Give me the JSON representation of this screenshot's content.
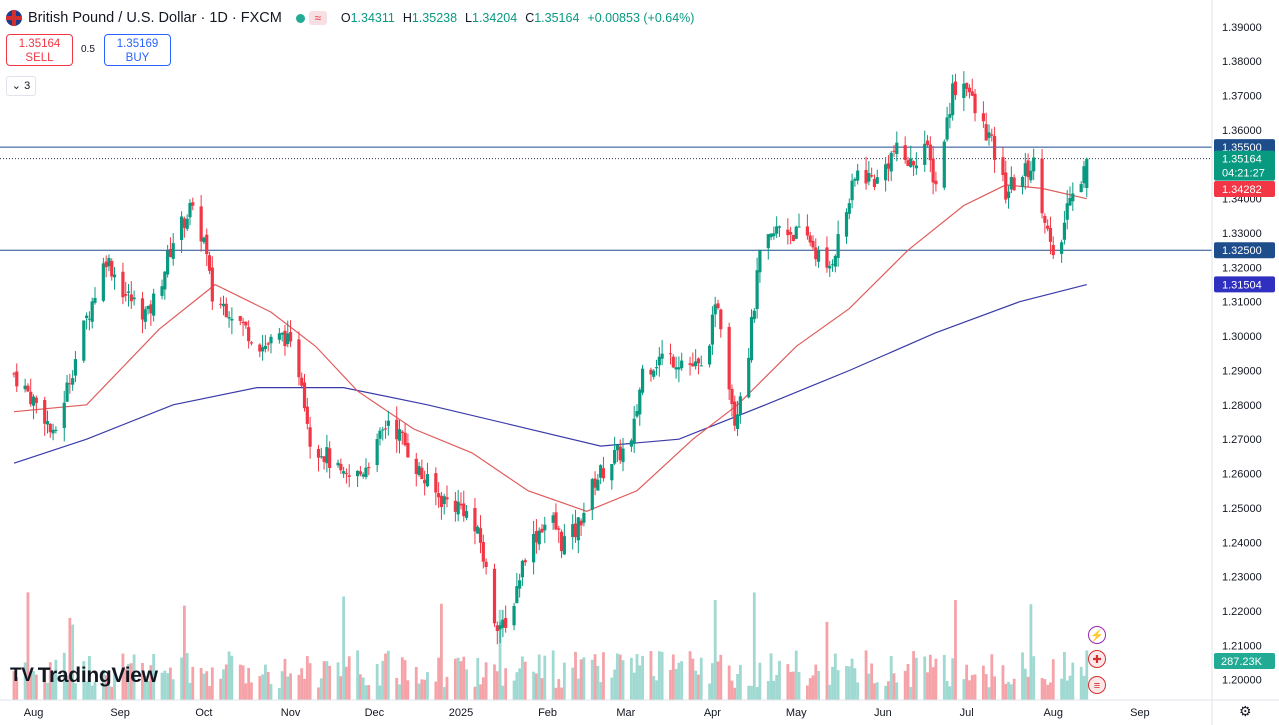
{
  "header": {
    "title": "British Pound / U.S. Dollar · 1D · FXCM",
    "ohlc": [
      {
        "k": "O",
        "v": "1.34311"
      },
      {
        "k": "H",
        "v": "1.35238"
      },
      {
        "k": "L",
        "v": "1.34204"
      },
      {
        "k": "C",
        "v": "1.35164"
      }
    ],
    "change": "+0.00853 (+0.64%)"
  },
  "trade": {
    "sell_price": "1.35164",
    "sell_label": "SELL",
    "spread": "0.5",
    "buy_price": "1.35169",
    "buy_label": "BUY"
  },
  "studies_count": "3",
  "logo_text": "TradingView",
  "events": [
    "lightning-icon",
    "uk-flag-icon",
    "us-flag-icon"
  ],
  "colors": {
    "up": "#089981",
    "down": "#f23645",
    "ma50": "#e05c5c",
    "ma200": "#3b3ba8",
    "hline": "#1e4d8c",
    "vol_up": "#9fd9d1",
    "vol_down": "#f5a3a8"
  },
  "chart_data": {
    "type": "candlestick",
    "symbol": "GBPUSD",
    "interval": "1D",
    "y_ticks": [
      "1.39000",
      "1.38000",
      "1.37000",
      "1.36000",
      "1.35000",
      "1.34000",
      "1.33000",
      "1.32000",
      "1.31000",
      "1.30000",
      "1.29000",
      "1.28000",
      "1.27000",
      "1.26000",
      "1.25000",
      "1.24000",
      "1.23000",
      "1.22000",
      "1.21000",
      "1.20000"
    ],
    "ylim": [
      1.197,
      1.392
    ],
    "x_ticks": [
      "Aug",
      "Sep",
      "Oct",
      "Nov",
      "Dec",
      "2025",
      "Feb",
      "Mar",
      "Apr",
      "May",
      "Jun",
      "Jul",
      "Aug",
      "Sep"
    ],
    "horizontal_levels": [
      {
        "value": 1.355,
        "label": "1.35500",
        "color": "#1e4d8c"
      },
      {
        "value": 1.325,
        "label": "1.32500",
        "color": "#1e4d8c"
      }
    ],
    "price_labels": [
      {
        "value": 1.35164,
        "label": "1.35164",
        "countdown": "04:21:27",
        "color": "#089981"
      },
      {
        "value": 1.34282,
        "label": "1.34282",
        "color": "#f23645"
      },
      {
        "value": 1.31504,
        "label": "1.31504",
        "color": "#3030c0"
      }
    ],
    "volume_label": "287.23K",
    "close_path": [
      [
        "2024-07-25",
        1.289
      ],
      [
        "2024-08-05",
        1.277
      ],
      [
        "2024-08-08",
        1.27
      ],
      [
        "2024-08-13",
        1.285
      ],
      [
        "2024-08-20",
        1.305
      ],
      [
        "2024-08-27",
        1.323
      ],
      [
        "2024-09-03",
        1.312
      ],
      [
        "2024-09-11",
        1.306
      ],
      [
        "2024-09-16",
        1.317
      ],
      [
        "2024-09-20",
        1.328
      ],
      [
        "2024-09-26",
        1.337
      ],
      [
        "2024-10-01",
        1.328
      ],
      [
        "2024-10-04",
        1.311
      ],
      [
        "2024-10-10",
        1.308
      ],
      [
        "2024-10-16",
        1.302
      ],
      [
        "2024-10-22",
        1.297
      ],
      [
        "2024-10-30",
        1.3
      ],
      [
        "2024-11-05",
        1.288
      ],
      [
        "2024-11-08",
        1.27
      ],
      [
        "2024-11-14",
        1.265
      ],
      [
        "2024-11-20",
        1.258
      ],
      [
        "2024-11-26",
        1.26
      ],
      [
        "2024-12-02",
        1.268
      ],
      [
        "2024-12-06",
        1.276
      ],
      [
        "2024-12-11",
        1.27
      ],
      [
        "2024-12-18",
        1.259
      ],
      [
        "2024-12-24",
        1.253
      ],
      [
        "2025-01-02",
        1.25
      ],
      [
        "2025-01-08",
        1.24
      ],
      [
        "2025-01-13",
        1.218
      ],
      [
        "2025-01-17",
        1.214
      ],
      [
        "2025-01-24",
        1.237
      ],
      [
        "2025-01-30",
        1.245
      ],
      [
        "2025-02-03",
        1.246
      ],
      [
        "2025-02-06",
        1.24
      ],
      [
        "2025-02-11",
        1.243
      ],
      [
        "2025-02-18",
        1.258
      ],
      [
        "2025-02-25",
        1.265
      ],
      [
        "2025-03-03",
        1.268
      ],
      [
        "2025-03-07",
        1.29
      ],
      [
        "2025-03-14",
        1.294
      ],
      [
        "2025-03-21",
        1.293
      ],
      [
        "2025-03-28",
        1.29
      ],
      [
        "2025-04-03",
        1.31
      ],
      [
        "2025-04-09",
        1.276
      ],
      [
        "2025-04-14",
        1.296
      ],
      [
        "2025-04-18",
        1.323
      ],
      [
        "2025-04-25",
        1.332
      ],
      [
        "2025-04-30",
        1.33
      ],
      [
        "2025-05-06",
        1.328
      ],
      [
        "2025-05-12",
        1.318
      ],
      [
        "2025-05-16",
        1.328
      ],
      [
        "2025-05-23",
        1.348
      ],
      [
        "2025-05-30",
        1.345
      ],
      [
        "2025-06-05",
        1.354
      ],
      [
        "2025-06-11",
        1.35
      ],
      [
        "2025-06-16",
        1.356
      ],
      [
        "2025-06-20",
        1.344
      ],
      [
        "2025-06-26",
        1.372
      ],
      [
        "2025-07-01",
        1.374
      ],
      [
        "2025-07-04",
        1.365
      ],
      [
        "2025-07-09",
        1.358
      ],
      [
        "2025-07-15",
        1.342
      ],
      [
        "2025-07-21",
        1.347
      ],
      [
        "2025-07-25",
        1.35
      ],
      [
        "2025-07-29",
        1.335
      ],
      [
        "2025-08-01",
        1.321
      ],
      [
        "2025-08-04",
        1.328
      ],
      [
        "2025-08-07",
        1.343
      ],
      [
        "2025-08-11",
        1.346
      ],
      [
        "2025-08-13",
        1.3516
      ]
    ],
    "ma50_path": [
      [
        "2024-07-25",
        1.278
      ],
      [
        "2024-08-20",
        1.28
      ],
      [
        "2024-09-15",
        1.302
      ],
      [
        "2024-10-05",
        1.315
      ],
      [
        "2024-10-25",
        1.307
      ],
      [
        "2024-11-10",
        1.297
      ],
      [
        "2024-11-25",
        1.284
      ],
      [
        "2024-12-15",
        1.273
      ],
      [
        "2025-01-05",
        1.266
      ],
      [
        "2025-01-25",
        1.255
      ],
      [
        "2025-02-15",
        1.249
      ],
      [
        "2025-03-05",
        1.255
      ],
      [
        "2025-03-25",
        1.27
      ],
      [
        "2025-04-10",
        1.28
      ],
      [
        "2025-05-01",
        1.297
      ],
      [
        "2025-05-20",
        1.308
      ],
      [
        "2025-06-10",
        1.325
      ],
      [
        "2025-06-30",
        1.338
      ],
      [
        "2025-07-15",
        1.344
      ],
      [
        "2025-07-28",
        1.343
      ],
      [
        "2025-08-13",
        1.34
      ]
    ],
    "ma200_path": [
      [
        "2024-07-25",
        1.263
      ],
      [
        "2024-08-20",
        1.27
      ],
      [
        "2024-09-20",
        1.28
      ],
      [
        "2024-10-20",
        1.285
      ],
      [
        "2024-11-20",
        1.285
      ],
      [
        "2024-12-20",
        1.28
      ],
      [
        "2025-01-20",
        1.274
      ],
      [
        "2025-02-20",
        1.268
      ],
      [
        "2025-03-20",
        1.27
      ],
      [
        "2025-04-20",
        1.28
      ],
      [
        "2025-05-20",
        1.29
      ],
      [
        "2025-06-20",
        1.301
      ],
      [
        "2025-07-20",
        1.31
      ],
      [
        "2025-08-13",
        1.315
      ]
    ]
  }
}
